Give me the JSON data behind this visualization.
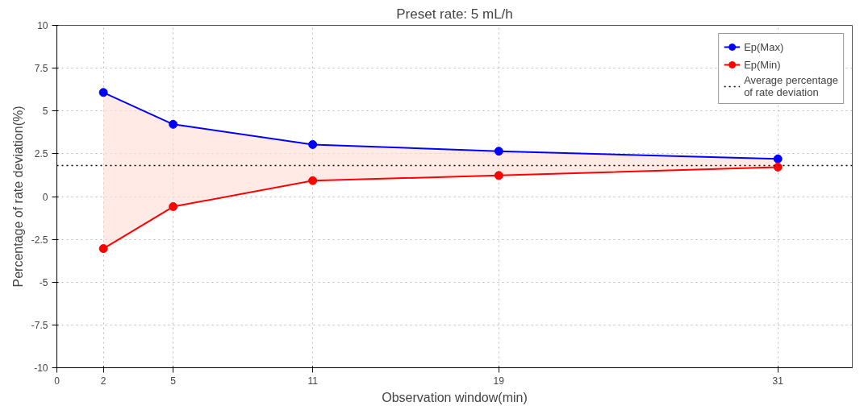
{
  "chart_data": {
    "type": "line",
    "title": "Preset rate: 5 mL/h",
    "xlabel": "Observation window(min)",
    "ylabel": "Percentage of rate deviation(%)",
    "x": [
      2,
      5,
      11,
      19,
      31
    ],
    "series": [
      {
        "name": "Ep(Max)",
        "color": "#0000ff",
        "values": [
          6.08,
          4.22,
          3.04,
          2.65,
          2.2
        ],
        "lower": [
          -3.04,
          -0.59,
          0.93,
          1.23,
          1.72
        ],
        "upper": [
          6.08,
          4.22,
          3.04,
          2.65,
          2.2
        ]
      },
      {
        "name": "Ep(Min)",
        "color": "#ff0000",
        "values": [
          -3.04,
          -0.59,
          0.93,
          1.23,
          1.72
        ]
      }
    ],
    "ref_lines": [
      {
        "axis": "y",
        "value": 1.81,
        "label": "Average percentage\nof rate deviation",
        "color": "#000000",
        "line_style": "dotted"
      }
    ],
    "xlim": [
      0,
      34.2
    ],
    "xticks": [
      0,
      2,
      5,
      11,
      19,
      31
    ],
    "ylim": [
      -10,
      10
    ],
    "yticks": [
      -10,
      -7.5,
      -5,
      -2.5,
      0,
      2.5,
      5,
      7.5,
      10
    ],
    "grid": true,
    "legend": "top right",
    "marker": "circle",
    "line_style": "solid"
  }
}
